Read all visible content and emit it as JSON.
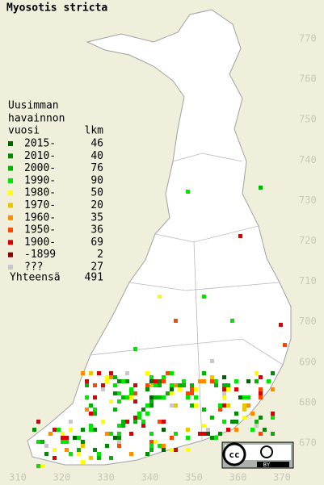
{
  "title": "Myosotis stricta",
  "legend": {
    "heading": [
      "Uusimman",
      "havainnon",
      "vuosi"
    ],
    "count_heading": "lkm",
    "rows": [
      {
        "label": "2015-",
        "count": 46,
        "color": "#006400"
      },
      {
        "label": "2010-",
        "count": 40,
        "color": "#008c00"
      },
      {
        "label": "2000-",
        "count": 76,
        "color": "#00b400"
      },
      {
        "label": "1990-",
        "count": 90,
        "color": "#00e600"
      },
      {
        "label": "1980-",
        "count": 50,
        "color": "#ffff00"
      },
      {
        "label": "1970-",
        "count": 20,
        "color": "#e6c800"
      },
      {
        "label": "1960-",
        "count": 35,
        "color": "#ff8c00"
      },
      {
        "label": "1950-",
        "count": 36,
        "color": "#ff4600"
      },
      {
        "label": "1900-",
        "count": 69,
        "color": "#dc0000"
      },
      {
        "label": "-1899",
        "count": 2,
        "color": "#8c0000"
      },
      {
        "label": "???",
        "count": 27,
        "color": "#c8c8c8"
      }
    ],
    "total_label": "Yhteensä",
    "total": 491
  },
  "grid_labels": {
    "north": [
      770,
      760,
      750,
      740,
      730,
      720,
      710,
      700,
      690,
      680,
      670
    ],
    "east": [
      310,
      320,
      330,
      340,
      350,
      360,
      370
    ]
  },
  "license": {
    "icon": "cc",
    "label": "BY"
  }
}
